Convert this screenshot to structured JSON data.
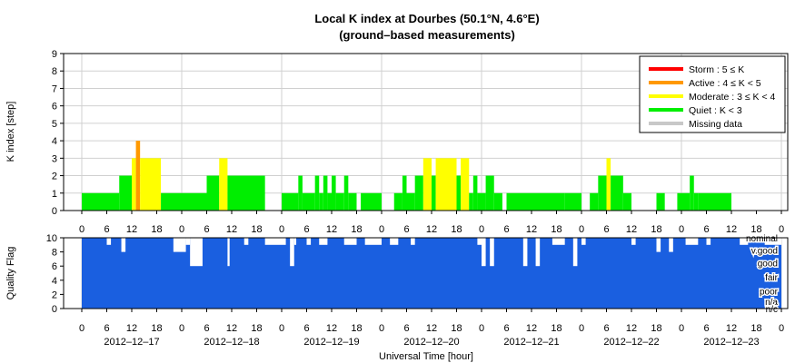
{
  "chart_data": [
    {
      "type": "bar",
      "title": "Local K index at Dourbes (50.1°N, 4.6°E)",
      "subtitle": "(ground–based measurements)",
      "ylabel": "K index [step]",
      "ylim": [
        0,
        9
      ],
      "yticks": [
        "0",
        "1",
        "2",
        "3",
        "4",
        "5",
        "6",
        "7",
        "8",
        "9"
      ],
      "xlim_hours": [
        0,
        168
      ],
      "xtick_labels": [
        "0",
        "6",
        "12",
        "18",
        "0",
        "6",
        "12",
        "18",
        "0",
        "6",
        "12",
        "18",
        "0",
        "6",
        "12",
        "18",
        "0",
        "6",
        "12",
        "18",
        "0",
        "6",
        "12",
        "18",
        "0",
        "6",
        "12",
        "18",
        "0"
      ],
      "grid": true,
      "legend_position": "top-right",
      "legend": [
        {
          "label": "Storm : 5 ≤ K",
          "color": "#ff0000"
        },
        {
          "label": "Active : 4 ≤ K < 5",
          "color": "#ff9900"
        },
        {
          "label": "Moderate : 3 ≤ K < 4",
          "color": "#ffff00"
        },
        {
          "label": "Quiet : K < 3",
          "color": "#00ee00"
        },
        {
          "label": "Missing data",
          "color": "#c8c8c8"
        }
      ],
      "series": [
        {
          "bars_hours": [
            {
              "x": [
                0,
                6
              ],
              "k": 1
            },
            {
              "x": [
                6,
                9
              ],
              "k": 1
            },
            {
              "x": [
                9,
                12
              ],
              "k": 2
            },
            {
              "x": [
                12,
                13
              ],
              "k": 3
            },
            {
              "x": [
                13,
                14
              ],
              "k": 4
            },
            {
              "x": [
                14,
                19
              ],
              "k": 3
            },
            {
              "x": [
                19,
                30
              ],
              "k": 1
            },
            {
              "x": [
                30,
                33
              ],
              "k": 2
            },
            {
              "x": [
                33,
                35
              ],
              "k": 3
            },
            {
              "x": [
                35,
                44
              ],
              "k": 2
            },
            {
              "x": [
                48,
                52
              ],
              "k": 1
            },
            {
              "x": [
                52,
                53
              ],
              "k": 2
            },
            {
              "x": [
                53,
                56
              ],
              "k": 1
            },
            {
              "x": [
                56,
                57
              ],
              "k": 2
            },
            {
              "x": [
                57,
                58
              ],
              "k": 1
            },
            {
              "x": [
                58,
                59
              ],
              "k": 2
            },
            {
              "x": [
                59,
                60
              ],
              "k": 1
            },
            {
              "x": [
                60,
                61
              ],
              "k": 2
            },
            {
              "x": [
                61,
                63
              ],
              "k": 1
            },
            {
              "x": [
                63,
                64
              ],
              "k": 2
            },
            {
              "x": [
                64,
                66
              ],
              "k": 1
            },
            {
              "x": [
                67,
                72
              ],
              "k": 1
            },
            {
              "x": [
                75,
                77
              ],
              "k": 1
            },
            {
              "x": [
                77,
                78
              ],
              "k": 2
            },
            {
              "x": [
                78,
                80
              ],
              "k": 1
            },
            {
              "x": [
                80,
                82
              ],
              "k": 2
            },
            {
              "x": [
                82,
                84
              ],
              "k": 3
            },
            {
              "x": [
                84,
                85
              ],
              "k": 2
            },
            {
              "x": [
                85,
                90
              ],
              "k": 3
            },
            {
              "x": [
                90,
                91
              ],
              "k": 2
            },
            {
              "x": [
                91,
                93
              ],
              "k": 3
            },
            {
              "x": [
                93,
                94
              ],
              "k": 1
            },
            {
              "x": [
                94,
                95
              ],
              "k": 2
            },
            {
              "x": [
                95,
                97
              ],
              "k": 1
            },
            {
              "x": [
                97,
                99
              ],
              "k": 2
            },
            {
              "x": [
                99,
                101
              ],
              "k": 1
            },
            {
              "x": [
                102,
                116
              ],
              "k": 1
            },
            {
              "x": [
                116,
                120
              ],
              "k": 1
            },
            {
              "x": [
                122,
                124
              ],
              "k": 1
            },
            {
              "x": [
                124,
                126
              ],
              "k": 2
            },
            {
              "x": [
                126,
                127
              ],
              "k": 3
            },
            {
              "x": [
                127,
                130
              ],
              "k": 2
            },
            {
              "x": [
                130,
                132
              ],
              "k": 1
            },
            {
              "x": [
                138,
                140
              ],
              "k": 1
            },
            {
              "x": [
                143,
                146
              ],
              "k": 1
            },
            {
              "x": [
                146,
                147
              ],
              "k": 2
            },
            {
              "x": [
                147,
                148
              ],
              "k": 1
            },
            {
              "x": [
                148,
                156
              ],
              "k": 1
            }
          ]
        }
      ],
      "level_colors": {
        "quiet": "#00ee00",
        "moderate": "#ffff00",
        "active": "#ff9900",
        "storm": "#ff0000"
      }
    },
    {
      "type": "bar",
      "ylabel": "Quality Flag",
      "ylim": [
        0,
        10
      ],
      "yticks": [
        "0",
        "2",
        "4",
        "6",
        "8",
        "10"
      ],
      "xlabel": "Universal Time [hour]",
      "xlim_hours": [
        0,
        168
      ],
      "xtick_labels": [
        "0",
        "6",
        "12",
        "18",
        "0",
        "6",
        "12",
        "18",
        "0",
        "6",
        "12",
        "18",
        "0",
        "6",
        "12",
        "18",
        "0",
        "6",
        "12",
        "18",
        "0",
        "6",
        "12",
        "18",
        "0",
        "6",
        "12",
        "18",
        "0"
      ],
      "date_labels": [
        "2012–12–17",
        "2012–12–18",
        "2012–12–19",
        "2012–12–20",
        "2012–12–21",
        "2012–12–22",
        "2012–12–23"
      ],
      "quality_levels": [
        "nominal",
        "v.good",
        "good",
        "fair",
        "poor",
        "n/a",
        "n/c"
      ],
      "color": "#1a5fe0",
      "dips_hours": [
        {
          "x": [
            6,
            7
          ],
          "v": 9
        },
        {
          "x": [
            9.5,
            10.5
          ],
          "v": 8
        },
        {
          "x": [
            22,
            25
          ],
          "v": 8
        },
        {
          "x": [
            25,
            26
          ],
          "v": 9
        },
        {
          "x": [
            26,
            29
          ],
          "v": 6
        },
        {
          "x": [
            35,
            35.5
          ],
          "v": 6
        },
        {
          "x": [
            39,
            40
          ],
          "v": 9
        },
        {
          "x": [
            44,
            48
          ],
          "v": 9
        },
        {
          "x": [
            48,
            49
          ],
          "v": 9
        },
        {
          "x": [
            50,
            51
          ],
          "v": 6
        },
        {
          "x": [
            51,
            51.5
          ],
          "v": 9
        },
        {
          "x": [
            54,
            55
          ],
          "v": 9
        },
        {
          "x": [
            57,
            59
          ],
          "v": 9
        },
        {
          "x": [
            63,
            66
          ],
          "v": 9
        },
        {
          "x": [
            68,
            72
          ],
          "v": 9
        },
        {
          "x": [
            74,
            76
          ],
          "v": 9
        },
        {
          "x": [
            79,
            80
          ],
          "v": 9
        },
        {
          "x": [
            95,
            96
          ],
          "v": 9
        },
        {
          "x": [
            96,
            97
          ],
          "v": 6
        },
        {
          "x": [
            98,
            99
          ],
          "v": 6
        },
        {
          "x": [
            106,
            107
          ],
          "v": 6
        },
        {
          "x": [
            109,
            110
          ],
          "v": 6
        },
        {
          "x": [
            113,
            116
          ],
          "v": 9
        },
        {
          "x": [
            118,
            119
          ],
          "v": 6
        },
        {
          "x": [
            120,
            121
          ],
          "v": 9
        },
        {
          "x": [
            132,
            133
          ],
          "v": 9
        },
        {
          "x": [
            138,
            139
          ],
          "v": 8
        },
        {
          "x": [
            141,
            142
          ],
          "v": 8
        },
        {
          "x": [
            145,
            148
          ],
          "v": 9
        },
        {
          "x": [
            150,
            151
          ],
          "v": 9
        },
        {
          "x": [
            158,
            160
          ],
          "v": 9
        },
        {
          "x": [
            164,
            168
          ],
          "v": 9
        }
      ]
    }
  ]
}
